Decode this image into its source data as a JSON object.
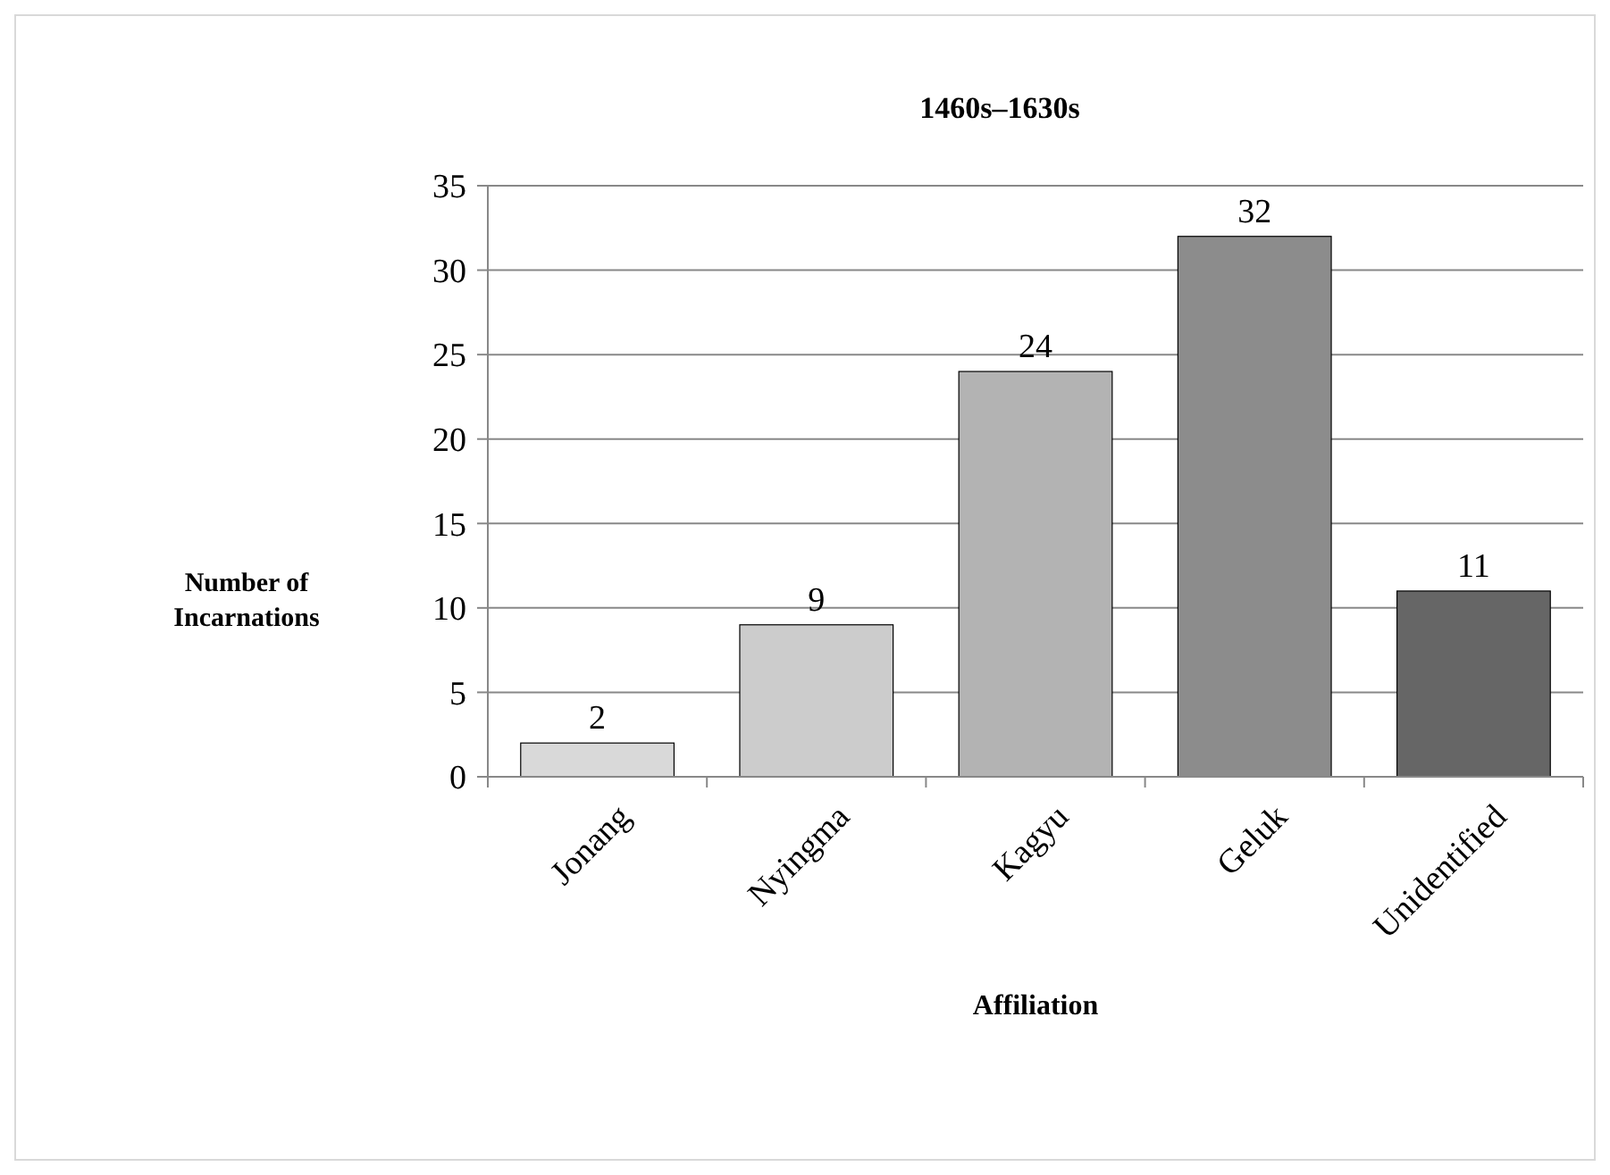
{
  "chart_data": {
    "type": "bar",
    "title": "1460s–1630s",
    "xlabel": "Affiliation",
    "ylabel": "Number of Incarnations",
    "categories": [
      "Jonang",
      "Nyingma",
      "Kagyu",
      "Geluk",
      "Unidentified"
    ],
    "values": [
      2,
      9,
      24,
      32,
      11
    ],
    "colors": [
      "#d9d9d9",
      "#cccccc",
      "#b3b3b3",
      "#8c8c8c",
      "#666666"
    ],
    "ylim": [
      0,
      35
    ],
    "yticks": [
      0,
      5,
      10,
      15,
      20,
      25,
      30,
      35
    ],
    "grid": "y",
    "data_labels": true
  }
}
